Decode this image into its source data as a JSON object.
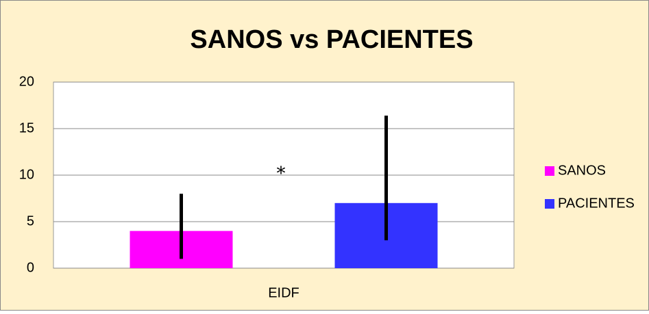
{
  "chart_data": {
    "type": "bar",
    "title": "SANOS vs PACIENTES",
    "categories": [
      "EIDF"
    ],
    "series": [
      {
        "name": "SANOS",
        "color": "#ff00ff",
        "values": [
          4
        ],
        "error_minus": [
          3
        ],
        "error_plus": [
          4
        ]
      },
      {
        "name": "PACIENTES",
        "color": "#3333ff",
        "values": [
          7
        ],
        "error_minus": [
          4
        ],
        "error_plus": [
          9.4
        ]
      }
    ],
    "annotation": "*",
    "ylim": [
      0,
      20
    ],
    "yticks": [
      0,
      5,
      10,
      15,
      20
    ],
    "grid": true,
    "legend": "right"
  }
}
